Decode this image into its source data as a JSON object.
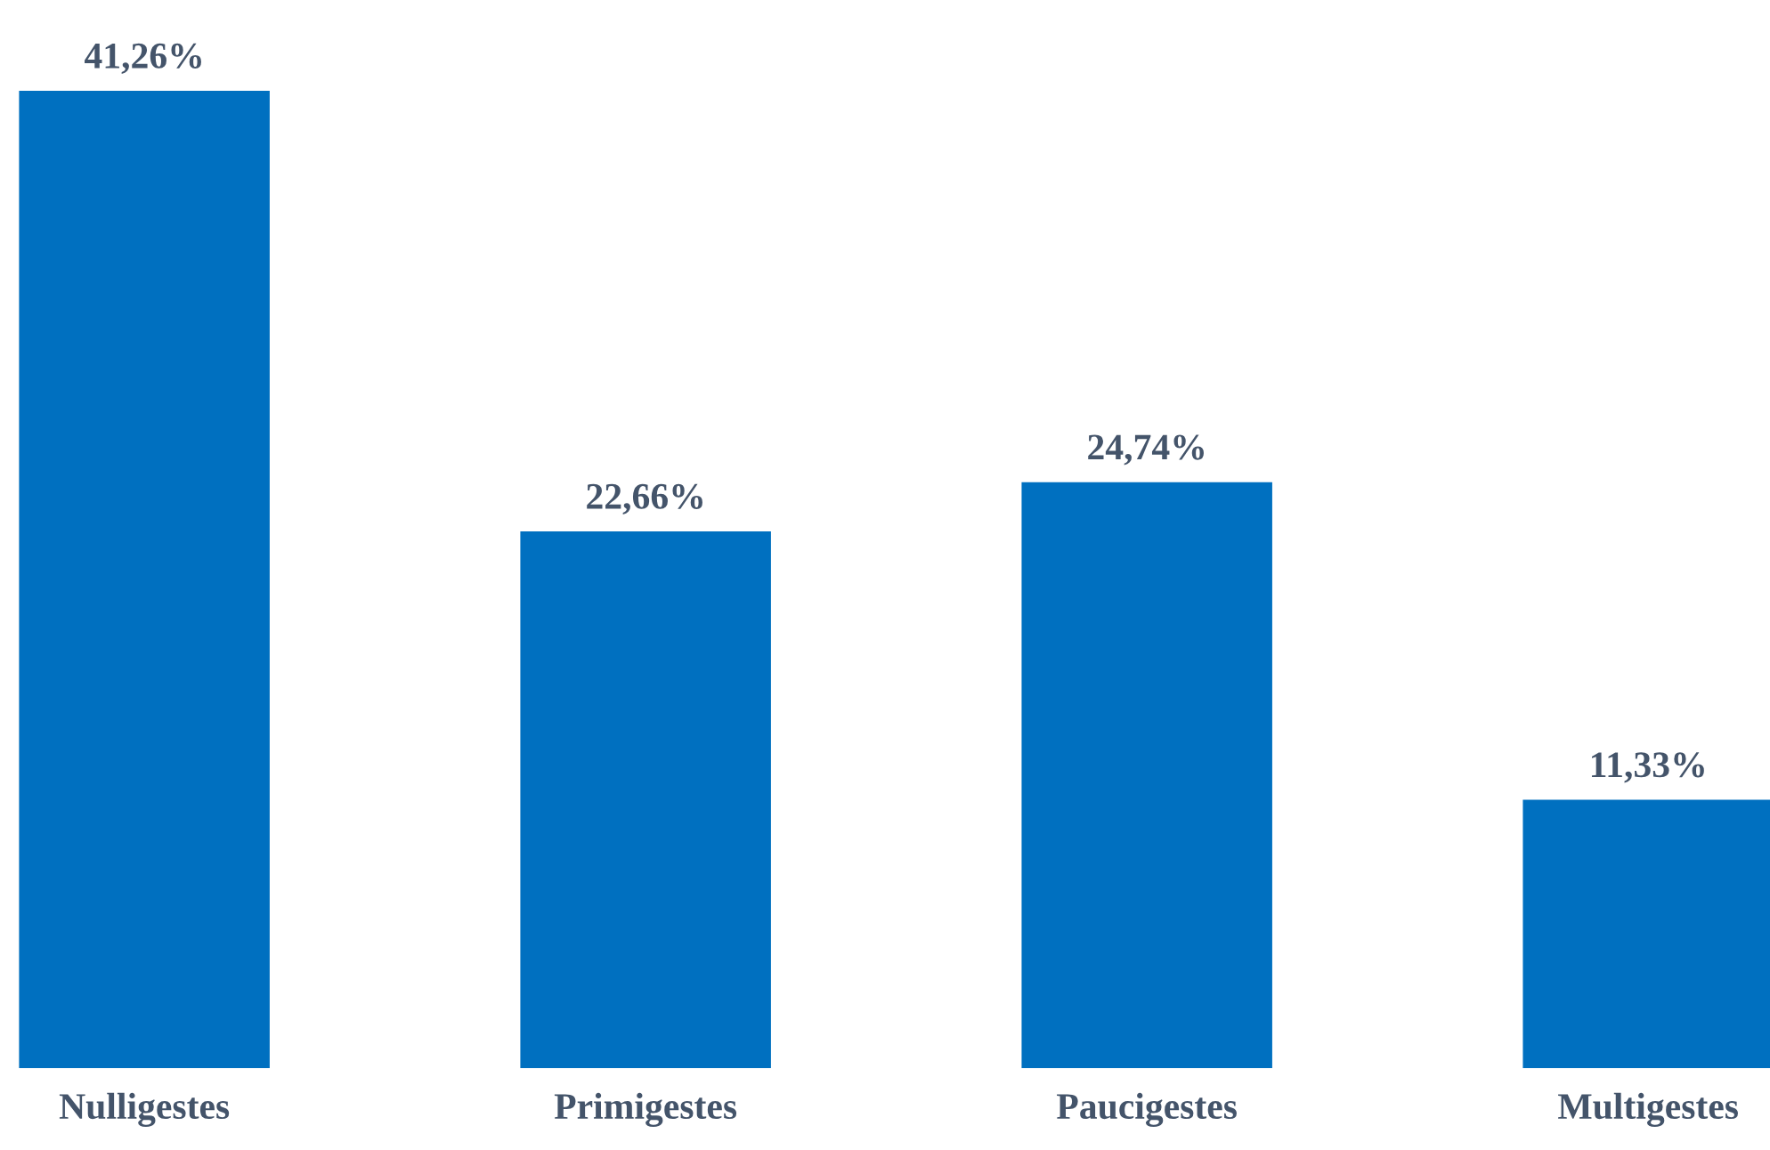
{
  "chart_data": {
    "type": "bar",
    "categories": [
      "Nulligestes",
      "Primigestes",
      "Paucigestes",
      "Multigestes"
    ],
    "values": [
      41.26,
      22.66,
      24.74,
      11.33
    ],
    "value_labels": [
      "41,26%",
      "22,66%",
      "24,74%",
      "11,33%"
    ],
    "color": "#0070c0",
    "grid": false,
    "legend": false
  }
}
